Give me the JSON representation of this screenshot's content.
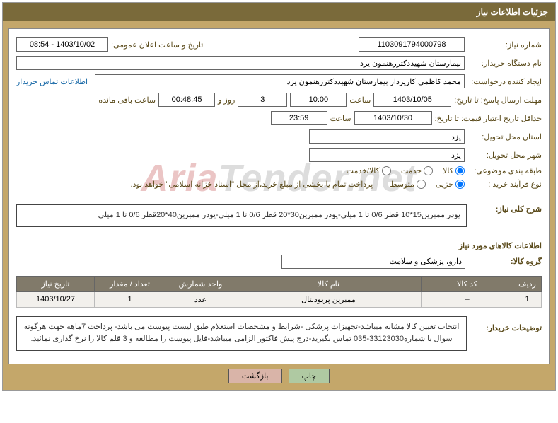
{
  "header": {
    "title": "جزئیات اطلاعات نیاز"
  },
  "fields": {
    "need_no_label": "شماره نیاز:",
    "need_no": "1103091794000798",
    "announce_label": "تاریخ و ساعت اعلان عمومی:",
    "announce": "1403/10/02 - 08:54",
    "buyer_org_label": "نام دستگاه خریدار:",
    "buyer_org": "بیمارستان شهیددکتررهنمون یزد",
    "requester_label": "ایجاد کننده درخواست:",
    "requester": "محمد کاظمی کارپرداز بیمارستان شهیددکتررهنمون یزد",
    "contact_link": "اطلاعات تماس خریدار",
    "deadline_send_label": "مهلت ارسال پاسخ: تا تاریخ:",
    "deadline_send_date": "1403/10/05",
    "time_label": "ساعت",
    "deadline_send_time": "10:00",
    "days_and": "روز و",
    "days_val": "3",
    "remaining_time": "00:48:45",
    "remaining_label": "ساعت باقی مانده",
    "min_valid_label": "حداقل تاریخ اعتبار قیمت: تا تاریخ:",
    "min_valid_date": "1403/10/30",
    "min_valid_time": "23:59",
    "province_label": "استان محل تحویل:",
    "province": "یزد",
    "city_label": "شهر محل تحویل:",
    "city": "یزد",
    "category_label": "طبقه بندی موضوعی:",
    "cat_goods": "کالا",
    "cat_service": "خدمت",
    "cat_both": "کالا/خدمت",
    "process_label": "نوع فرآیند خرید :",
    "proc_partial": "جزیی",
    "proc_medium": "متوسط",
    "payment_note": "پرداخت تمام یا بخشی از مبلغ خرید،از محل \"اسناد خزانه اسلامی\" خواهد بود.",
    "summary_label": "شرح کلی نیاز:",
    "summary_text": "پودر ممبرین15*10 قطر 0/6 تا 1 میلی-پودر ممبرین30*20 قطر 0/6 تا 1 میلی-پودر ممبرین40*20قطر 0/6 تا 1 میلی",
    "goods_info_title": "اطلاعات کالاهای مورد نیاز",
    "group_label": "گروه کالا:",
    "group_value": "دارو، پزشکی و سلامت",
    "desc_label": "توضیحات خریدار:",
    "desc_text": "انتخاب تعیین کالا مشابه میباشد-تجهیزات پزشکی -شرایط و مشخصات استعلام طبق لیست پیوست می باشد- پرداخت 7ماهه جهت هرگونه سوال با شماره33123030-035 تماس بگیرید-درج پیش فاکتور الزامی میباشد-فایل پیوست را مطالعه  و 3 قلم کالا را نرخ گذاری نمائید.",
    "btn_print": "چاپ",
    "btn_back": "بازگشت"
  },
  "table": {
    "headers": [
      "ردیف",
      "کد کالا",
      "نام کالا",
      "واحد شمارش",
      "تعداد / مقدار",
      "تاریخ نیاز"
    ],
    "col_widths": [
      "40px",
      "130px",
      "auto",
      "100px",
      "100px",
      "110px"
    ],
    "rows": [
      [
        "1",
        "--",
        "ممبرین پریودنتال",
        "عدد",
        "1",
        "1403/10/27"
      ]
    ]
  },
  "watermark": {
    "t1": "Aria",
    "t2": "Tender",
    "t3": ".net"
  },
  "colors": {
    "header_bg": "#7a6a3a",
    "band_bg": "#c4a76a",
    "label_color": "#5a4a1a",
    "th_bg": "#817a6a",
    "td_bg": "#f2f0ec",
    "link_color": "#1a6aa8"
  }
}
